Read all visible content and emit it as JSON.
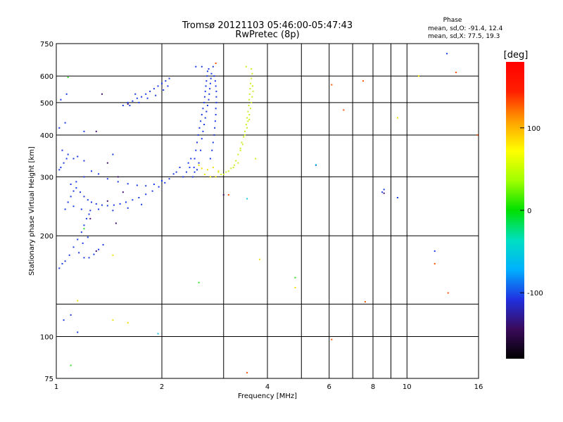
{
  "chart_data": {
    "type": "scatter",
    "title": "Tromsø 20121103 05:46:00-05:47:43",
    "subtitle": "RwPretec (8p)",
    "xlabel": "Frequency [MHz]",
    "ylabel": "Stationary phase Virtual Height [km]",
    "x_scale": "log",
    "y_scale": "log",
    "xlim": [
      1,
      16
    ],
    "ylim": [
      75,
      750
    ],
    "x_ticks": [
      "1",
      "2",
      "4",
      "6",
      "8",
      "10",
      "16"
    ],
    "x_tick_values": [
      1,
      2,
      4,
      6,
      8,
      10,
      16
    ],
    "x_grid_values": [
      1,
      2,
      3,
      4,
      5,
      6,
      7,
      8,
      9,
      10,
      16
    ],
    "y_ticks": [
      "75",
      "100",
      "200",
      "300",
      "400",
      "500",
      "600",
      "750"
    ],
    "y_tick_values": [
      75,
      100,
      200,
      300,
      400,
      500,
      600,
      750
    ],
    "y_grid_values": [
      75,
      100,
      125,
      200,
      300,
      400,
      500,
      600,
      750
    ],
    "grid": true,
    "stats": {
      "title": "Phase",
      "line_o": "mean, sd,O: -91.4, 12.4",
      "line_x": "mean, sd,X:  77.5, 19.3"
    },
    "colorbar": {
      "label": "[deg]",
      "range": [
        -180,
        180
      ],
      "ticks": [
        "100",
        "0",
        "-100"
      ],
      "tick_values": [
        100,
        0,
        -100
      ],
      "colors": [
        "#000000",
        "#3a0a5a",
        "#2030e0",
        "#00b0ff",
        "#00e0c0",
        "#00e000",
        "#a0ff00",
        "#ffff00",
        "#ffa000",
        "#ff2000",
        "#ff0000"
      ]
    },
    "series": [
      {
        "phase": -100,
        "color": "#1838e8",
        "points": [
          [
            1.06,
            240
          ],
          [
            1.08,
            252
          ],
          [
            1.1,
            262
          ],
          [
            1.12,
            272
          ],
          [
            1.14,
            278
          ],
          [
            1.17,
            270
          ],
          [
            1.2,
            262
          ],
          [
            1.23,
            256
          ],
          [
            1.26,
            252
          ],
          [
            1.3,
            249
          ],
          [
            1.35,
            247
          ],
          [
            1.4,
            246
          ],
          [
            1.46,
            247
          ],
          [
            1.52,
            249
          ],
          [
            1.58,
            252
          ],
          [
            1.65,
            256
          ],
          [
            1.72,
            260
          ],
          [
            1.8,
            266
          ],
          [
            1.88,
            272
          ],
          [
            1.96,
            280
          ],
          [
            2.04,
            288
          ],
          [
            2.1,
            296
          ],
          [
            2.16,
            306
          ],
          [
            1.1,
            285
          ],
          [
            1.14,
            290
          ],
          [
            1.2,
            300
          ],
          [
            1.26,
            312
          ],
          [
            1.32,
            306
          ],
          [
            1.4,
            296
          ],
          [
            1.5,
            290
          ],
          [
            1.6,
            286
          ],
          [
            1.7,
            283
          ],
          [
            1.8,
            282
          ],
          [
            1.9,
            285
          ],
          [
            2.0,
            292
          ],
          [
            1.12,
            245
          ],
          [
            1.18,
            240
          ],
          [
            1.25,
            238
          ],
          [
            1.32,
            240
          ],
          [
            1.45,
            238
          ],
          [
            1.6,
            242
          ],
          [
            1.75,
            248
          ],
          [
            1.02,
            160
          ],
          [
            1.04,
            165
          ],
          [
            1.06,
            168
          ],
          [
            1.09,
            175
          ],
          [
            1.12,
            185
          ],
          [
            1.15,
            195
          ],
          [
            1.18,
            205
          ],
          [
            1.2,
            215
          ],
          [
            1.22,
            225
          ],
          [
            1.24,
            232
          ],
          [
            1.16,
            178
          ],
          [
            1.2,
            172
          ],
          [
            1.24,
            172
          ],
          [
            1.28,
            176
          ],
          [
            1.32,
            182
          ],
          [
            1.36,
            188
          ],
          [
            1.19,
            190
          ],
          [
            1.23,
            198
          ],
          [
            1.02,
            315
          ],
          [
            1.03,
            320
          ],
          [
            1.05,
            330
          ],
          [
            1.07,
            340
          ],
          [
            1.04,
            360
          ],
          [
            1.08,
            350
          ],
          [
            1.12,
            340
          ],
          [
            1.15,
            345
          ],
          [
            1.2,
            335
          ],
          [
            1.02,
            420
          ],
          [
            1.06,
            435
          ],
          [
            1.03,
            510
          ],
          [
            1.07,
            530
          ],
          [
            1.2,
            410
          ],
          [
            1.45,
            350
          ],
          [
            1.1,
            116
          ],
          [
            1.15,
            103
          ],
          [
            1.05,
            112
          ],
          [
            1.55,
            490
          ],
          [
            1.6,
            500
          ],
          [
            1.65,
            505
          ],
          [
            1.7,
            515
          ],
          [
            1.75,
            520
          ],
          [
            1.8,
            530
          ],
          [
            1.85,
            540
          ],
          [
            1.9,
            550
          ],
          [
            1.95,
            560
          ],
          [
            2.0,
            570
          ],
          [
            2.05,
            580
          ],
          [
            2.1,
            590
          ],
          [
            1.62,
            490
          ],
          [
            1.72,
            500
          ],
          [
            1.82,
            515
          ],
          [
            1.92,
            525
          ],
          [
            2.02,
            545
          ],
          [
            2.08,
            560
          ],
          [
            1.68,
            530
          ],
          [
            2.45,
            300
          ],
          [
            2.47,
            320
          ],
          [
            2.48,
            340
          ],
          [
            2.5,
            360
          ],
          [
            2.52,
            380
          ],
          [
            2.54,
            400
          ],
          [
            2.56,
            420
          ],
          [
            2.58,
            440
          ],
          [
            2.6,
            460
          ],
          [
            2.62,
            480
          ],
          [
            2.64,
            500
          ],
          [
            2.65,
            520
          ],
          [
            2.66,
            540
          ],
          [
            2.67,
            560
          ],
          [
            2.68,
            580
          ],
          [
            2.69,
            600
          ],
          [
            2.7,
            620
          ],
          [
            2.55,
            330
          ],
          [
            2.58,
            360
          ],
          [
            2.6,
            390
          ],
          [
            2.62,
            410
          ],
          [
            2.64,
            430
          ],
          [
            2.66,
            450
          ],
          [
            2.68,
            470
          ],
          [
            2.7,
            490
          ],
          [
            2.72,
            510
          ],
          [
            2.73,
            530
          ],
          [
            2.74,
            550
          ],
          [
            2.75,
            570
          ],
          [
            2.76,
            590
          ],
          [
            2.77,
            610
          ],
          [
            2.5,
            640
          ],
          [
            2.6,
            640
          ],
          [
            2.72,
            630
          ],
          [
            2.8,
            640
          ],
          [
            2.82,
            600
          ],
          [
            2.84,
            580
          ],
          [
            2.85,
            560
          ],
          [
            2.86,
            540
          ],
          [
            2.86,
            520
          ],
          [
            2.86,
            500
          ],
          [
            2.85,
            480
          ],
          [
            2.85,
            460
          ],
          [
            2.84,
            440
          ],
          [
            2.83,
            420
          ],
          [
            2.82,
            400
          ],
          [
            2.8,
            380
          ],
          [
            2.78,
            360
          ],
          [
            2.75,
            340
          ],
          [
            2.2,
            310
          ],
          [
            2.25,
            320
          ],
          [
            2.3,
            300
          ],
          [
            2.35,
            310
          ],
          [
            2.4,
            320
          ],
          [
            2.42,
            340
          ],
          [
            2.38,
            330
          ],
          [
            2.48,
            310
          ],
          [
            2.52,
            315
          ],
          [
            5.5,
            325
          ],
          [
            8.5,
            270
          ],
          [
            8.6,
            275
          ],
          [
            9.4,
            260
          ],
          [
            12.0,
            180
          ],
          [
            13.0,
            700
          ]
        ]
      },
      {
        "phase": -140,
        "color": "#401070",
        "points": [
          [
            1.3,
            410
          ],
          [
            1.4,
            330
          ],
          [
            1.5,
            300
          ],
          [
            1.48,
            218
          ],
          [
            1.4,
            254
          ],
          [
            1.55,
            270
          ],
          [
            1.6,
            495
          ],
          [
            1.35,
            530
          ],
          [
            1.25,
            225
          ],
          [
            1.3,
            180
          ],
          [
            3.0,
            265
          ],
          [
            8.6,
            268
          ]
        ]
      },
      {
        "phase": 90,
        "color": "#c8f020",
        "points": [
          [
            3.2,
            320
          ],
          [
            3.25,
            335
          ],
          [
            3.3,
            350
          ],
          [
            3.35,
            365
          ],
          [
            3.38,
            380
          ],
          [
            3.42,
            395
          ],
          [
            3.45,
            410
          ],
          [
            3.48,
            430
          ],
          [
            3.5,
            450
          ],
          [
            3.52,
            470
          ],
          [
            3.54,
            490
          ],
          [
            3.55,
            510
          ],
          [
            3.56,
            530
          ],
          [
            3.57,
            550
          ],
          [
            3.58,
            570
          ],
          [
            3.6,
            590
          ],
          [
            3.62,
            610
          ],
          [
            3.6,
            630
          ],
          [
            3.48,
            640
          ],
          [
            3.0,
            305
          ],
          [
            3.05,
            310
          ],
          [
            3.1,
            312
          ],
          [
            3.15,
            318
          ],
          [
            3.22,
            325
          ],
          [
            3.3,
            330
          ],
          [
            3.35,
            360
          ],
          [
            3.4,
            375
          ],
          [
            3.45,
            400
          ],
          [
            3.5,
            420
          ],
          [
            3.52,
            440
          ],
          [
            3.55,
            460
          ],
          [
            3.58,
            480
          ],
          [
            3.6,
            500
          ],
          [
            3.62,
            520
          ],
          [
            3.64,
            540
          ],
          [
            3.63,
            560
          ],
          [
            2.9,
            310
          ],
          [
            2.95,
            305
          ],
          [
            3.7,
            340
          ],
          [
            3.55,
            445
          ]
        ]
      },
      {
        "phase": 120,
        "color": "#f0e000",
        "points": [
          [
            2.6,
            318
          ],
          [
            2.7,
            315
          ],
          [
            2.8,
            320
          ],
          [
            2.9,
            312
          ],
          [
            2.65,
            305
          ],
          [
            2.75,
            300
          ],
          [
            2.85,
            300
          ],
          [
            2.55,
            325
          ],
          [
            3.8,
            170
          ],
          [
            4.8,
            140
          ],
          [
            1.6,
            110
          ],
          [
            1.45,
            112
          ],
          [
            1.15,
            128
          ],
          [
            9.4,
            450
          ],
          [
            10.8,
            600
          ],
          [
            1.45,
            175
          ]
        ]
      },
      {
        "phase": 170,
        "color": "#ff5000",
        "points": [
          [
            3.5,
            78
          ],
          [
            6.1,
            98
          ],
          [
            6.1,
            565
          ],
          [
            6.6,
            475
          ],
          [
            7.5,
            580
          ],
          [
            7.6,
            127
          ],
          [
            12.0,
            165
          ],
          [
            13.1,
            135
          ],
          [
            13.8,
            615
          ],
          [
            15.9,
            400
          ],
          [
            2.85,
            655
          ],
          [
            3.1,
            265
          ]
        ]
      },
      {
        "phase": 40,
        "color": "#30e020",
        "points": [
          [
            1.08,
            595
          ],
          [
            1.2,
            210
          ],
          [
            1.1,
            82
          ],
          [
            2.55,
            145
          ],
          [
            4.8,
            150
          ]
        ]
      },
      {
        "phase": -20,
        "color": "#10c8e0",
        "points": [
          [
            5.5,
            326
          ],
          [
            3.5,
            258
          ],
          [
            1.95,
            102
          ]
        ]
      }
    ]
  }
}
